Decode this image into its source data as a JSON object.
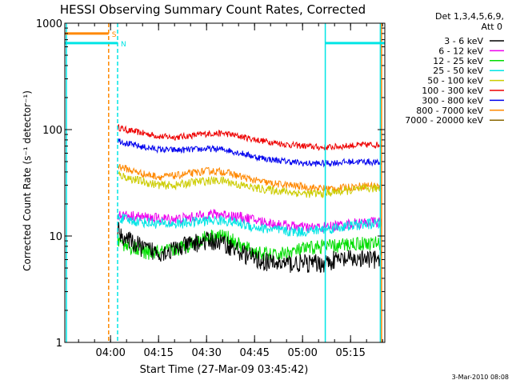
{
  "chart_data": {
    "type": "line",
    "title": "HESSI Observing Summary Count Rates, Corrected",
    "xlabel": "Start Time (27-Mar-09 03:45:42)",
    "ylabel": "Corrected Count Rate (s⁻¹ detector⁻¹)",
    "x_unit": "minutes after 03:45:42",
    "xlim": [
      0,
      100
    ],
    "ylim": [
      1,
      1000
    ],
    "y_scale": "log",
    "y_ticks": [
      {
        "value": 1,
        "label": "1"
      },
      {
        "value": 10,
        "label": "10"
      },
      {
        "value": 100,
        "label": "100"
      },
      {
        "value": 1000,
        "label": "1000"
      }
    ],
    "x_ticks": [
      {
        "value": 14.3,
        "label": "04:00"
      },
      {
        "value": 29.3,
        "label": "04:15"
      },
      {
        "value": 44.3,
        "label": "04:30"
      },
      {
        "value": 59.3,
        "label": "04:45"
      },
      {
        "value": 74.3,
        "label": "05:00"
      },
      {
        "value": 89.3,
        "label": "05:15"
      }
    ],
    "legend": {
      "title_line1": "Det 1,3,4,5,6,9,",
      "title_line2": "Att 0",
      "placement": "right",
      "entries": [
        {
          "label": "3 - 6 keV",
          "color": "#000000"
        },
        {
          "label": "6 - 12 keV",
          "color": "#ee00ee"
        },
        {
          "label": "12 - 25 keV",
          "color": "#00dd00"
        },
        {
          "label": "25 - 50 keV",
          "color": "#00e5e5"
        },
        {
          "label": "50 - 100 keV",
          "color": "#cccc00"
        },
        {
          "label": "100 - 300 keV",
          "color": "#ee0000"
        },
        {
          "label": "300 - 800 keV",
          "color": "#0000ee"
        },
        {
          "label": "800 - 7000 keV",
          "color": "#ff8800"
        },
        {
          "label": "7000 - 20000 keV",
          "color": "#886600"
        }
      ]
    },
    "series": [
      {
        "label_ref": 5,
        "color": "#ee0000",
        "noise": 0.03,
        "x": [
          16.5,
          20,
          25,
          30,
          35,
          40,
          45,
          50,
          55,
          60,
          65,
          70,
          75,
          80,
          85,
          90,
          95,
          99
        ],
        "y": [
          105,
          98,
          92,
          86,
          85,
          88,
          92,
          92,
          86,
          80,
          76,
          72,
          70,
          68,
          69,
          71,
          72,
          72
        ]
      },
      {
        "label_ref": 6,
        "color": "#0000ee",
        "noise": 0.03,
        "x": [
          16.5,
          20,
          25,
          30,
          35,
          40,
          45,
          50,
          55,
          60,
          65,
          70,
          75,
          80,
          85,
          90,
          95,
          99
        ],
        "y": [
          80,
          73,
          68,
          65,
          64,
          65,
          66,
          65,
          60,
          55,
          52,
          50,
          48,
          48,
          49,
          50,
          50,
          48
        ]
      },
      {
        "label_ref": 7,
        "color": "#ff8800",
        "noise": 0.035,
        "x": [
          16.5,
          20,
          25,
          30,
          35,
          40,
          45,
          50,
          55,
          60,
          65,
          70,
          75,
          80,
          85,
          90,
          95,
          99
        ],
        "y": [
          46,
          42,
          38,
          36,
          37,
          39,
          41,
          40,
          36,
          33,
          31,
          30,
          29,
          28,
          28,
          29,
          30,
          29
        ]
      },
      {
        "label_ref": 4,
        "color": "#cccc00",
        "noise": 0.04,
        "x": [
          16.5,
          20,
          25,
          30,
          35,
          40,
          45,
          50,
          55,
          60,
          65,
          70,
          75,
          80,
          85,
          90,
          95,
          99
        ],
        "y": [
          38,
          35,
          32,
          30,
          30,
          32,
          33,
          33,
          30,
          28,
          27,
          26,
          25,
          25,
          26,
          27,
          28,
          28
        ]
      },
      {
        "label_ref": 1,
        "color": "#ee00ee",
        "noise": 0.05,
        "x": [
          16.5,
          20,
          25,
          30,
          35,
          40,
          45,
          50,
          55,
          60,
          65,
          70,
          75,
          80,
          85,
          90,
          95,
          99
        ],
        "y": [
          16,
          15.5,
          15,
          14.5,
          14.5,
          15,
          16,
          16,
          15,
          14,
          13,
          12.5,
          12,
          12,
          12.5,
          13,
          13.5,
          13.5
        ]
      },
      {
        "label_ref": 3,
        "color": "#00e5e5",
        "noise": 0.05,
        "x": [
          16.5,
          20,
          25,
          30,
          35,
          40,
          45,
          50,
          55,
          60,
          65,
          70,
          75,
          80,
          85,
          90,
          95,
          99
        ],
        "y": [
          15,
          14,
          13.5,
          13,
          13,
          13.5,
          14,
          14,
          13,
          12,
          11.5,
          11,
          11,
          11.5,
          12,
          12.5,
          13,
          13
        ]
      },
      {
        "label_ref": 2,
        "color": "#00dd00",
        "noise": 0.07,
        "x": [
          16.5,
          20,
          25,
          30,
          35,
          40,
          45,
          50,
          55,
          60,
          65,
          70,
          75,
          80,
          85,
          90,
          95,
          99
        ],
        "y": [
          9,
          8,
          7,
          7,
          7.5,
          8.5,
          10,
          10,
          8,
          7,
          6.5,
          7,
          7.5,
          8,
          8,
          8.5,
          8.5,
          8.5
        ]
      },
      {
        "label_ref": 0,
        "color": "#000000",
        "noise": 0.09,
        "x": [
          16.5,
          18,
          20,
          25,
          30,
          35,
          40,
          45,
          50,
          55,
          60,
          65,
          70,
          75,
          80,
          85,
          90,
          95,
          99
        ],
        "y": [
          11.5,
          10,
          9,
          7.5,
          7,
          7.5,
          8.5,
          9,
          8.5,
          7,
          6,
          5.5,
          5.5,
          5.5,
          5.5,
          6,
          6,
          6,
          6
        ]
      }
    ],
    "vertical_lines": [
      {
        "x": 0.5,
        "color": "#00e5e5",
        "style": "solid"
      },
      {
        "x": 13.7,
        "color": "#ff8800",
        "style": "dashed"
      },
      {
        "x": 16.5,
        "color": "#00e5e5",
        "style": "dashed"
      },
      {
        "x": 81.4,
        "color": "#00e5e5",
        "style": "solid"
      },
      {
        "x": 98.6,
        "color": "#00e5e5",
        "style": "solid"
      },
      {
        "x": 99.0,
        "color": "#ff8800",
        "style": "solid"
      }
    ],
    "flag_bars": [
      {
        "label": "S",
        "color": "#ff8800",
        "x0": 0,
        "x1": 13.7,
        "y": 800
      },
      {
        "label": "N",
        "color": "#00e5e5",
        "x0": 0,
        "x1": 16.5,
        "y": 650
      },
      {
        "label": "",
        "color": "#00e5e5",
        "x0": 81.4,
        "x1": 100,
        "y": 650
      }
    ],
    "timestamp": "3-Mar-2010 08:08"
  }
}
